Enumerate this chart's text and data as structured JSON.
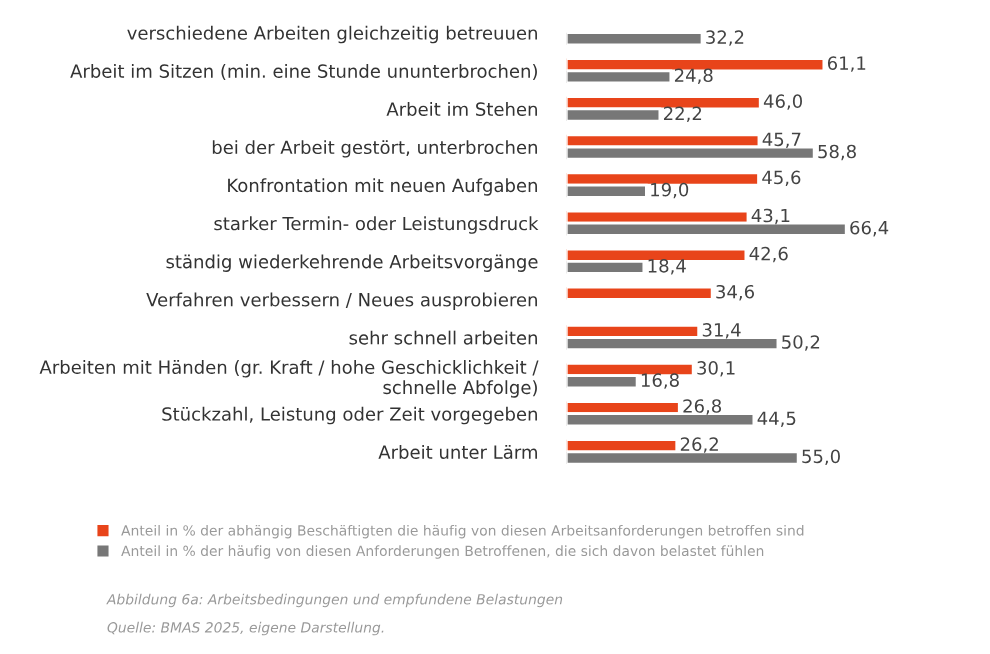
{
  "chart_data": {
    "type": "bar",
    "orientation": "horizontal",
    "categories": [
      "verschiedene Arbeiten gleichzeitig betreuuen",
      "Arbeit im Sitzen (min. eine Stunde ununterbrochen)",
      "Arbeit im Stehen",
      "bei der Arbeit gestört, unterbrochen",
      "Konfrontation mit neuen Aufgaben",
      "starker Termin- oder Leistungsdruck",
      "ständig wiederkehrende Arbeitsvorgänge",
      "Verfahren verbessern / Neues ausprobieren",
      "sehr schnell arbeiten",
      "Arbeiten mit Händen (gr. Kraft / hohe Geschicklichkeit /\nschnelle Abfolge)",
      "Stückzahl, Leistung oder Zeit vorgegeben",
      "Arbeit unter Lärm"
    ],
    "series": [
      {
        "name": "Anteil in % der abhängig Beschäftigten die häufig von diesen Arbeitsanforderungen betroffen sind",
        "color": "#e8441a",
        "values": [
          null,
          61.1,
          46.0,
          45.7,
          45.6,
          43.1,
          42.6,
          34.6,
          31.4,
          30.1,
          26.8,
          26.2
        ],
        "value_labels": [
          null,
          "61,1",
          "46,0",
          "45,7",
          "45,6",
          "43,1",
          "42,6",
          "34,6",
          "31,4",
          "30,1",
          "26,8",
          "26,2"
        ]
      },
      {
        "name": "Anteil in % der häufig von diesen Anforderungen Betroffenen, die sich davon belastet fühlen",
        "color": "#777777",
        "values": [
          32.2,
          24.8,
          22.2,
          58.8,
          19.0,
          66.4,
          18.4,
          null,
          50.2,
          16.8,
          44.5,
          55.0
        ],
        "value_labels": [
          "32,2",
          "24,8",
          "22,2",
          "58,8",
          "19,0",
          "66,4",
          "18,4",
          null,
          "50,2",
          "16,8",
          "44,5",
          "55,0"
        ]
      }
    ],
    "tick_labels": "y",
    "grid": false,
    "legend": "bottom left",
    "annotations": [
      "Abbildung 6a: Arbeitsbedingungen und empfundene Belastungen",
      "Quelle: BMAS 2025, eigene Darstellung."
    ]
  }
}
